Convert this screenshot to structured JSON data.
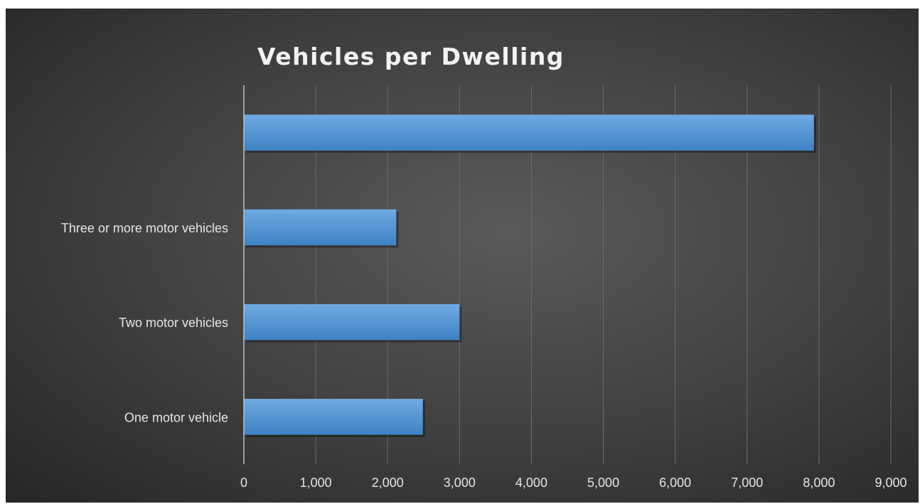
{
  "chart_data": {
    "type": "bar",
    "orientation": "horizontal",
    "title": "Vehicles per Dwelling",
    "xlabel": "",
    "ylabel": "",
    "categories": [
      "One motor vehicle",
      "Two motor vehicles",
      "Three or more motor vehicles",
      ""
    ],
    "values": [
      2490,
      3000,
      2120,
      7930
    ],
    "xlim": [
      0,
      9000
    ],
    "ticks": [
      0,
      1000,
      2000,
      3000,
      4000,
      5000,
      6000,
      7000,
      8000,
      9000
    ],
    "tick_labels": [
      "0",
      "1,000",
      "2,000",
      "3,000",
      "4,000",
      "5,000",
      "6,000",
      "7,000",
      "8,000",
      "9,000"
    ],
    "grid": true,
    "legend": "none",
    "colors": {
      "bar": "#5b9bd5",
      "bar_light": "#6faae3",
      "bar_dark": "#3e82c4",
      "grid": "#6b6b6b",
      "axis": "#bfbfbf",
      "text": "#e6e6e6"
    }
  }
}
